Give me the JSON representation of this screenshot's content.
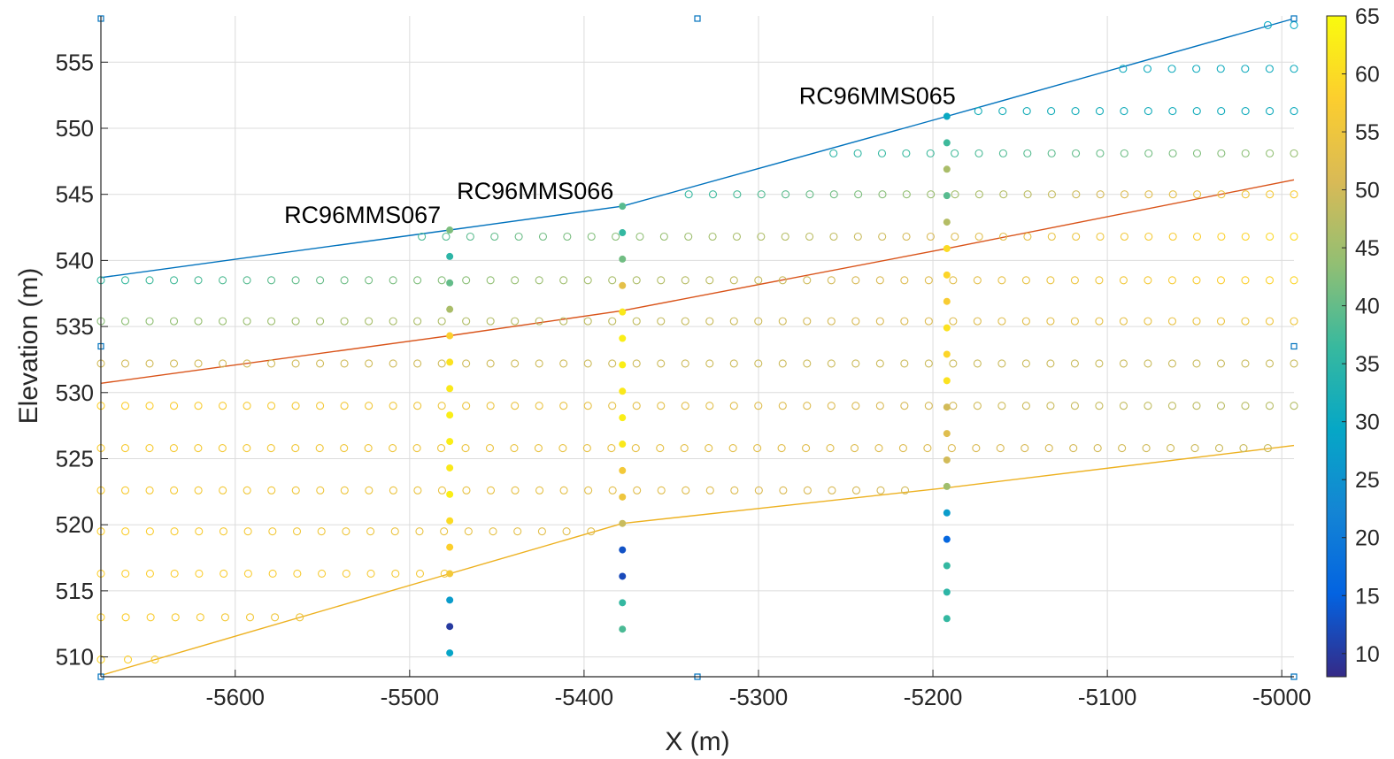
{
  "chart_data": {
    "type": "scatter",
    "title": "",
    "xlabel": "X (m)",
    "ylabel": "Elevation (m)",
    "xlim": [
      -5677,
      -4993
    ],
    "ylim": [
      508.5,
      558.5
    ],
    "xticks": [
      -5600,
      -5500,
      -5400,
      -5300,
      -5200,
      -5100,
      -5000
    ],
    "yticks": [
      510,
      515,
      520,
      525,
      530,
      535,
      540,
      545,
      550,
      555
    ],
    "grid": true,
    "colormap": "parula",
    "colorbar": {
      "min": 8,
      "max": 65,
      "ticks": [
        10,
        15,
        20,
        25,
        30,
        35,
        40,
        45,
        50,
        55,
        60,
        65
      ]
    },
    "grid_rows": [
      {
        "y": 557.8,
        "x0": -5008,
        "x1": -4993,
        "c0": 30,
        "c1": 30
      },
      {
        "y": 554.5,
        "x0": -5091,
        "x1": -4993,
        "c0": 31,
        "c1": 31
      },
      {
        "y": 551.3,
        "x0": -5174,
        "x1": -4993,
        "c0": 32,
        "c1": 31
      },
      {
        "y": 548.1,
        "x0": -5257,
        "x1": -4993,
        "c0": 35,
        "c1": 44
      },
      {
        "y": 545.0,
        "x0": -5340,
        "x1": -4993,
        "c0": 36,
        "c1": 57
      },
      {
        "y": 541.8,
        "x0": -5493,
        "x1": -4993,
        "c0": 38,
        "c1": 60
      },
      {
        "y": 538.5,
        "x0": -5677,
        "x1": -4993,
        "c0": 36,
        "c1": 59
      },
      {
        "y": 535.4,
        "x0": -5677,
        "x1": -4993,
        "c0": 43,
        "c1": 55
      },
      {
        "y": 532.2,
        "x0": -5677,
        "x1": -4993,
        "c0": 50,
        "c1": 49
      },
      {
        "y": 529.0,
        "x0": -5677,
        "x1": -4993,
        "c0": 58,
        "c1": 47
      },
      {
        "y": 525.8,
        "x0": -5677,
        "x1": -5008,
        "c0": 57,
        "c1": 49
      },
      {
        "y": 522.6,
        "x0": -5677,
        "x1": -5216,
        "c0": 57,
        "c1": 50
      },
      {
        "y": 519.5,
        "x0": -5677,
        "x1": -5396,
        "c0": 58,
        "c1": 52
      },
      {
        "y": 516.3,
        "x0": -5677,
        "x1": -5480,
        "c0": 58,
        "c1": 56
      },
      {
        "y": 513.0,
        "x0": -5677,
        "x1": -5563,
        "c0": 58,
        "c1": 55
      },
      {
        "y": 509.8,
        "x0": -5677,
        "x1": -5646,
        "c0": 59,
        "c1": 57
      }
    ],
    "boreholes": [
      {
        "name": "RC96MMS067",
        "x": -5477,
        "samples": [
          {
            "y": 542.3,
            "v": 42
          },
          {
            "y": 540.3,
            "v": 35
          },
          {
            "y": 538.3,
            "v": 40
          },
          {
            "y": 536.3,
            "v": 46
          },
          {
            "y": 534.3,
            "v": 58
          },
          {
            "y": 532.3,
            "v": 61
          },
          {
            "y": 530.3,
            "v": 62
          },
          {
            "y": 528.3,
            "v": 63
          },
          {
            "y": 526.3,
            "v": 63
          },
          {
            "y": 524.3,
            "v": 62
          },
          {
            "y": 522.3,
            "v": 63
          },
          {
            "y": 520.3,
            "v": 60
          },
          {
            "y": 518.3,
            "v": 58
          },
          {
            "y": 516.3,
            "v": 56
          },
          {
            "y": 514.3,
            "v": 27
          },
          {
            "y": 512.3,
            "v": 10
          },
          {
            "y": 510.3,
            "v": 29
          }
        ]
      },
      {
        "name": "RC96MMS066",
        "x": -5378,
        "samples": [
          {
            "y": 544.1,
            "v": 39
          },
          {
            "y": 542.1,
            "v": 36
          },
          {
            "y": 540.1,
            "v": 41
          },
          {
            "y": 538.1,
            "v": 53
          },
          {
            "y": 536.1,
            "v": 62
          },
          {
            "y": 534.1,
            "v": 63
          },
          {
            "y": 532.1,
            "v": 63
          },
          {
            "y": 530.1,
            "v": 62
          },
          {
            "y": 528.1,
            "v": 63
          },
          {
            "y": 526.1,
            "v": 62
          },
          {
            "y": 524.1,
            "v": 56
          },
          {
            "y": 522.1,
            "v": 55
          },
          {
            "y": 520.1,
            "v": 49
          },
          {
            "y": 518.1,
            "v": 13
          },
          {
            "y": 516.1,
            "v": 12
          },
          {
            "y": 514.1,
            "v": 36
          },
          {
            "y": 512.1,
            "v": 38
          }
        ]
      },
      {
        "name": "RC96MMS065",
        "x": -5192,
        "samples": [
          {
            "y": 550.9,
            "v": 30
          },
          {
            "y": 548.9,
            "v": 37
          },
          {
            "y": 546.9,
            "v": 46
          },
          {
            "y": 544.9,
            "v": 39
          },
          {
            "y": 542.9,
            "v": 47
          },
          {
            "y": 540.9,
            "v": 60
          },
          {
            "y": 538.9,
            "v": 59
          },
          {
            "y": 536.9,
            "v": 57
          },
          {
            "y": 534.9,
            "v": 61
          },
          {
            "y": 532.9,
            "v": 59
          },
          {
            "y": 530.9,
            "v": 61
          },
          {
            "y": 528.9,
            "v": 50
          },
          {
            "y": 526.9,
            "v": 52
          },
          {
            "y": 524.9,
            "v": 50
          },
          {
            "y": 522.9,
            "v": 45
          },
          {
            "y": 520.9,
            "v": 27
          },
          {
            "y": 518.9,
            "v": 16
          },
          {
            "y": 516.9,
            "v": 36
          },
          {
            "y": 514.9,
            "v": 35
          },
          {
            "y": 512.9,
            "v": 36
          }
        ]
      }
    ],
    "horizons": [
      {
        "color": "#0072BD",
        "points": [
          [
            -5677,
            538.7
          ],
          [
            -5477,
            542.3
          ],
          [
            -5378,
            544.1
          ],
          [
            -5192,
            550.9
          ],
          [
            -4993,
            558.3
          ]
        ]
      },
      {
        "color": "#D95319",
        "points": [
          [
            -5677,
            530.7
          ],
          [
            -5477,
            534.3
          ],
          [
            -5378,
            536.2
          ],
          [
            -5192,
            540.9
          ],
          [
            -4993,
            546.1
          ]
        ]
      },
      {
        "color": "#EDB120",
        "points": [
          [
            -5677,
            508.6
          ],
          [
            -5477,
            516.3
          ],
          [
            -5378,
            520.1
          ],
          [
            -5192,
            522.8
          ],
          [
            -4993,
            526.0
          ]
        ]
      }
    ],
    "markers": [
      [
        -5677,
        558.3
      ],
      [
        -5335,
        558.3
      ],
      [
        -4993,
        558.3
      ],
      [
        -5677,
        533.5
      ],
      [
        -4993,
        533.5
      ],
      [
        -5677,
        508.5
      ],
      [
        -5335,
        508.5
      ],
      [
        -4993,
        508.5
      ]
    ]
  }
}
